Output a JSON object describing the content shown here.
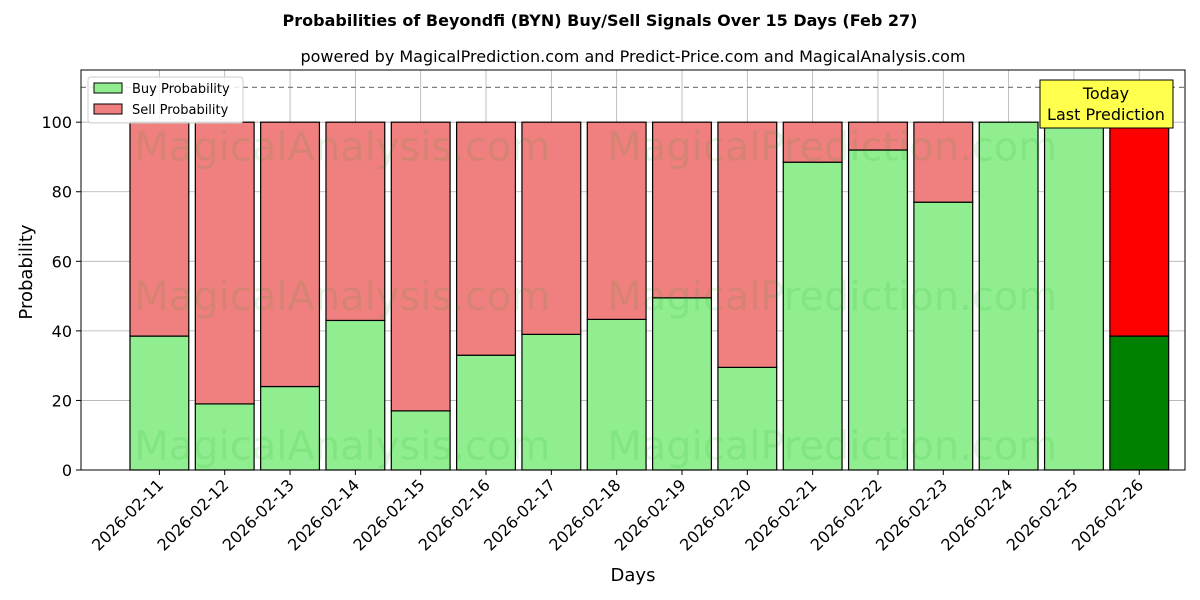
{
  "chart_data": {
    "type": "bar",
    "stacked": true,
    "title": "Probabilities of Beyondfi (BYN) Buy/Sell Signals Over 15 Days (Feb 27)",
    "subtitle": "powered by MagicalPrediction.com and Predict-Price.com and MagicalAnalysis.com",
    "xlabel": "Days",
    "ylabel": "Probability",
    "ylim": [
      0,
      115
    ],
    "yticks": [
      0,
      20,
      40,
      60,
      80,
      100
    ],
    "grid": true,
    "legend_position": "top-left",
    "categories": [
      "2026-02-11",
      "2026-02-12",
      "2026-02-13",
      "2026-02-14",
      "2026-02-15",
      "2026-02-16",
      "2026-02-17",
      "2026-02-18",
      "2026-02-19",
      "2026-02-20",
      "2026-02-21",
      "2026-02-22",
      "2026-02-23",
      "2026-02-24",
      "2026-02-25",
      "2026-02-26"
    ],
    "series": [
      {
        "name": "Buy Probability",
        "color": "#90ee90",
        "highlight_color": "#008000",
        "values": [
          38.5,
          19,
          24,
          43,
          17,
          33,
          39,
          43.3,
          49.5,
          29.5,
          88.5,
          92,
          77,
          100,
          100,
          38.5
        ]
      },
      {
        "name": "Sell Probability",
        "color": "#f08080",
        "highlight_color": "#ff0000",
        "values": [
          61.5,
          81,
          76,
          57,
          83,
          67,
          61,
          56.7,
          50.5,
          70.5,
          11.5,
          8,
          23,
          0,
          0,
          61.5
        ]
      }
    ],
    "highlight_index": 15,
    "reference_line": {
      "value": 110,
      "style": "dashed",
      "color": "#808080"
    },
    "annotation": {
      "lines": [
        "Today",
        "Last Prediction"
      ],
      "bg_color": "#ffff4d"
    },
    "watermarks": [
      "MagicalAnalysis.com",
      "MagicalPrediction.com"
    ]
  }
}
